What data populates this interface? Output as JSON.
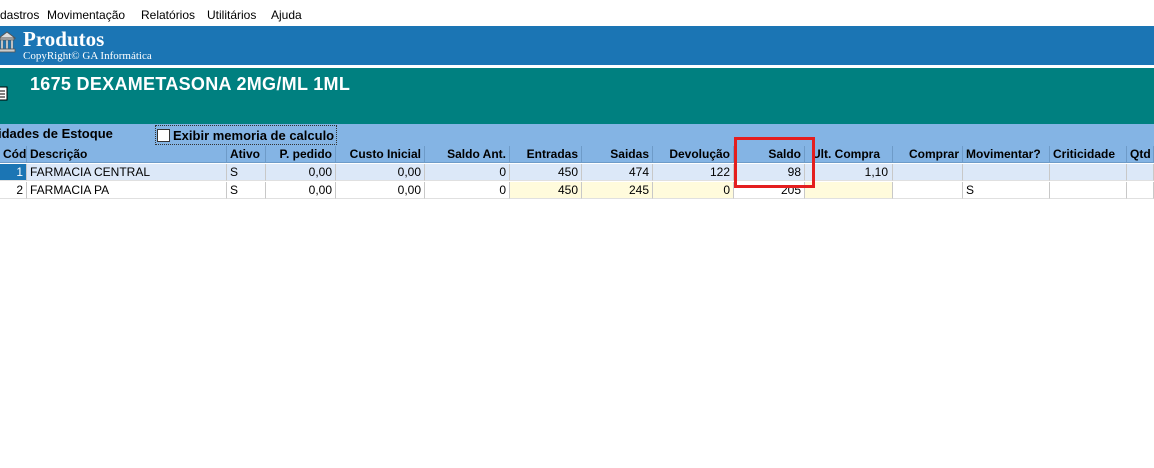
{
  "menu": {
    "items": [
      "dastros",
      "Movimentação",
      "Relatórios",
      "Utilitários",
      "Ajuda"
    ]
  },
  "header": {
    "title": "Produtos",
    "subtitle": "CopyRight© GA Informática"
  },
  "product": {
    "name": "1675 DEXAMETASONA 2MG/ML 1ML"
  },
  "tab": {
    "label": "idades de Estoque",
    "checkbox_label": "Exibir memoria de calculo",
    "checkbox_checked": false
  },
  "grid": {
    "columns": [
      "Cód",
      "Descrição",
      "Ativo",
      "P. pedido",
      "Custo Inicial",
      "Saldo Ant.",
      "Entradas",
      "Saidas",
      "Devolução",
      "Saldo",
      "Ult. Compra",
      "Comprar",
      "Movimentar?",
      "Criticidade",
      "Qtd"
    ],
    "rows": [
      [
        "1",
        "FARMACIA CENTRAL",
        "S",
        "0,00",
        "0,00",
        "0",
        "450",
        "474",
        "122",
        "98",
        "1,10",
        "",
        "",
        "",
        ""
      ],
      [
        "2",
        "FARMACIA PA",
        "S",
        "0,00",
        "0,00",
        "0",
        "450",
        "245",
        "0",
        "205",
        "",
        "",
        "S",
        "",
        ""
      ]
    ]
  },
  "colors": {
    "title_bar": "#1b75b4",
    "product_bar": "#008080",
    "grid_header": "#84b4e4",
    "highlight_box": "#e41e1e"
  }
}
